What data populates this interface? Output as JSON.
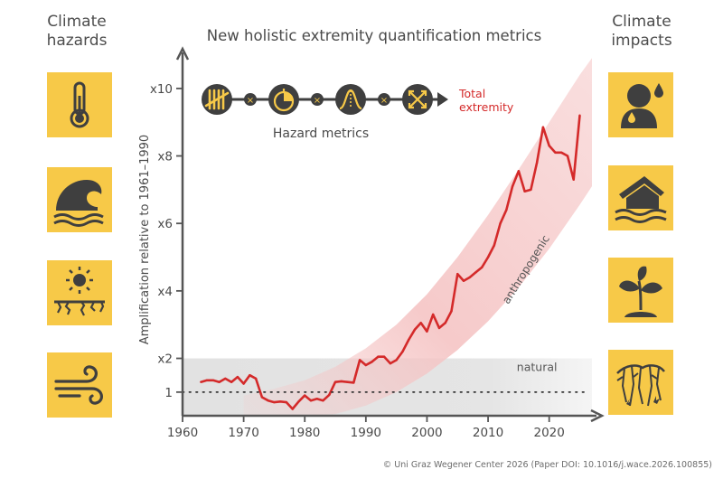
{
  "left_panel": {
    "title_line1": "Climate",
    "title_line2": "hazards",
    "icons": [
      "thermometer-icon",
      "wave-icon",
      "drought-icon",
      "wind-icon"
    ]
  },
  "right_panel": {
    "title_line1": "Climate",
    "title_line2": "impacts",
    "icons": [
      "heat-stress-person-icon",
      "flooded-house-icon",
      "wilting-plant-icon",
      "wildfire-forest-icon"
    ]
  },
  "metrics": {
    "caption": "Hazard metrics",
    "output_line1": "Total",
    "output_line2": "extremity",
    "icons": [
      "frequency-tally-icon",
      "duration-timer-icon",
      "intensity-curve-icon",
      "extent-arrows-icon"
    ],
    "operator": "×"
  },
  "credit": "© Uni Graz Wegener Center 2026 (Paper DOI: 10.1016/j.wace.2026.100855)",
  "colors": {
    "tile": "#f7c948",
    "line": "#d42a2a",
    "band": "#f5c4c4",
    "natural_band": "#e2e2e2",
    "axis": "#555555",
    "icon_dark": "#3f3f3f"
  },
  "chart_data": {
    "type": "line",
    "title": "New holistic extremity quantification metrics",
    "ylabel": "Amplification relative to 1961–1990",
    "xlabel": "",
    "x_ticks": [
      1960,
      1970,
      1980,
      1990,
      2000,
      2010,
      2020
    ],
    "y_ticks": [
      {
        "value": 1,
        "label": "1"
      },
      {
        "value": 2,
        "label": "x2"
      },
      {
        "value": 4,
        "label": "x4"
      },
      {
        "value": 6,
        "label": "x6"
      },
      {
        "value": 8,
        "label": "x8"
      },
      {
        "value": 10,
        "label": "x10"
      }
    ],
    "xlim": [
      1960,
      2027
    ],
    "ylim": [
      0.3,
      10.8
    ],
    "grid": false,
    "reference_line": {
      "value": 1,
      "style": "dotted"
    },
    "natural_band": {
      "label": "natural",
      "low": 0.3,
      "high": 2.0
    },
    "anthropogenic_band": {
      "label": "anthropogenic",
      "x": [
        1970,
        1975,
        1980,
        1985,
        1990,
        1995,
        2000,
        2005,
        2010,
        2015,
        2020,
        2025,
        2027
      ],
      "lower": [
        0.3,
        0.3,
        0.3,
        0.35,
        0.6,
        1.0,
        1.55,
        2.25,
        3.1,
        4.1,
        5.25,
        6.55,
        7.1
      ],
      "upper": [
        0.9,
        1.1,
        1.35,
        1.75,
        2.3,
        3.0,
        3.9,
        5.0,
        6.25,
        7.6,
        9.0,
        10.4,
        10.9
      ]
    },
    "series": [
      {
        "x": [
          1963,
          1964,
          1965,
          1966,
          1967,
          1968,
          1969,
          1970,
          1971,
          1972,
          1973,
          1974,
          1975,
          1976,
          1977,
          1978,
          1979,
          1980,
          1981,
          1982,
          1983,
          1984,
          1985,
          1986,
          1987,
          1988,
          1989,
          1990,
          1991,
          1992,
          1993,
          1994,
          1995,
          1996,
          1997,
          1998,
          1999,
          2000,
          2001,
          2002,
          2003,
          2004,
          2005,
          2006,
          2007,
          2008,
          2009,
          2010,
          2011,
          2012,
          2013,
          2014,
          2015,
          2016,
          2017,
          2018,
          2019,
          2020,
          2021,
          2022,
          2023,
          2024,
          2025
        ],
        "y": [
          1.3,
          1.35,
          1.35,
          1.3,
          1.4,
          1.3,
          1.45,
          1.25,
          1.5,
          1.4,
          0.85,
          0.75,
          0.7,
          0.72,
          0.7,
          0.5,
          0.72,
          0.9,
          0.75,
          0.8,
          0.75,
          0.92,
          1.3,
          1.32,
          1.3,
          1.28,
          1.95,
          1.8,
          1.9,
          2.05,
          2.05,
          1.85,
          1.95,
          2.2,
          2.55,
          2.85,
          3.05,
          2.8,
          3.3,
          2.9,
          3.05,
          3.4,
          4.5,
          4.3,
          4.4,
          4.55,
          4.7,
          5.0,
          5.35,
          6.0,
          6.4,
          7.1,
          7.55,
          6.95,
          7.0,
          7.8,
          8.85,
          8.3,
          8.1,
          8.1,
          8.0,
          7.3,
          9.2
        ]
      }
    ]
  }
}
